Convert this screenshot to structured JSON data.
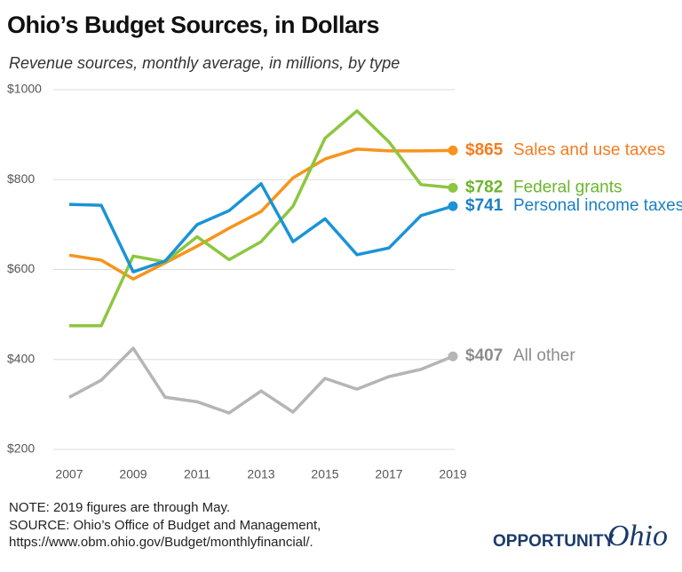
{
  "chart_data": {
    "type": "line",
    "title": "Ohio’s Budget Sources, in Dollars",
    "subtitle": "Revenue sources, monthly average, in millions, by type",
    "x": [
      2007,
      2008,
      2009,
      2010,
      2011,
      2012,
      2013,
      2014,
      2015,
      2016,
      2017,
      2018,
      2019
    ],
    "xlim": [
      2006.5,
      2019.5
    ],
    "xticks": [
      2007,
      2009,
      2011,
      2013,
      2015,
      2017,
      2019
    ],
    "ylim": [
      200,
      1000
    ],
    "yticks": [
      {
        "value": 200,
        "label": "$200"
      },
      {
        "value": 400,
        "label": "$400"
      },
      {
        "value": 600,
        "label": "$600"
      },
      {
        "value": 800,
        "label": "$800"
      },
      {
        "value": 1000,
        "label": "$1000"
      }
    ],
    "grid": true,
    "series": [
      {
        "name": "Sales and use taxes",
        "color": "#f7941d",
        "label_color": "#f47c20",
        "values": [
          632,
          621,
          579,
          615,
          652,
          692,
          729,
          804,
          846,
          868,
          864,
          864,
          865
        ],
        "value_labels": [
          null,
          null,
          null,
          null,
          null,
          null,
          null,
          null,
          null,
          null,
          null,
          null,
          "$865"
        ]
      },
      {
        "name": "Federal grants",
        "color": "#8dc63f",
        "label_color": "#6cb52d",
        "values": [
          475,
          475,
          630,
          617,
          673,
          622,
          662,
          741,
          892,
          953,
          884,
          789,
          782
        ],
        "value_labels": [
          null,
          null,
          null,
          null,
          null,
          null,
          null,
          null,
          null,
          null,
          null,
          null,
          "$782"
        ]
      },
      {
        "name": "Personal income taxes",
        "color": "#1b93d6",
        "label_color": "#1a7fc4",
        "values": [
          745,
          743,
          595,
          619,
          700,
          731,
          791,
          662,
          713,
          633,
          648,
          720,
          741
        ],
        "value_labels": [
          null,
          null,
          null,
          null,
          null,
          null,
          null,
          null,
          null,
          null,
          null,
          null,
          "$741"
        ]
      },
      {
        "name": "All other",
        "color": "#b5b5b8",
        "label_color": "#8c8c8f",
        "values": [
          316,
          354,
          425,
          316,
          306,
          281,
          330,
          283,
          358,
          334,
          362,
          378,
          407
        ],
        "value_labels": [
          null,
          null,
          null,
          null,
          null,
          null,
          null,
          null,
          null,
          null,
          null,
          null,
          "$407"
        ]
      }
    ],
    "notes": [
      "NOTE: 2019 figures are through May.",
      "SOURCE: Ohio’s Office of Budget and Management,",
      "https://www.obm.ohio.gov/Budget/monthlyfinancial/."
    ],
    "logo": [
      "OPPORTUNITY",
      "Ohio"
    ]
  }
}
